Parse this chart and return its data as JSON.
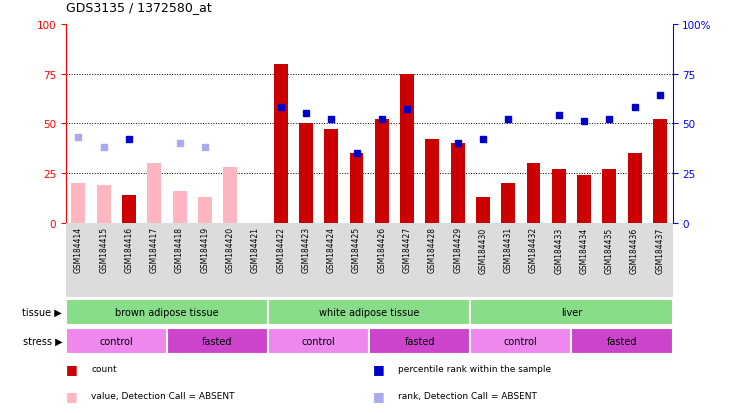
{
  "title": "GDS3135 / 1372580_at",
  "samples": [
    "GSM184414",
    "GSM184415",
    "GSM184416",
    "GSM184417",
    "GSM184418",
    "GSM184419",
    "GSM184420",
    "GSM184421",
    "GSM184422",
    "GSM184423",
    "GSM184424",
    "GSM184425",
    "GSM184426",
    "GSM184427",
    "GSM184428",
    "GSM184429",
    "GSM184430",
    "GSM184431",
    "GSM184432",
    "GSM184433",
    "GSM184434",
    "GSM184435",
    "GSM184436",
    "GSM184437"
  ],
  "count_values": [
    20,
    19,
    14,
    30,
    16,
    13,
    28,
    null,
    80,
    50,
    47,
    35,
    52,
    75,
    42,
    40,
    13,
    20,
    30,
    27,
    24,
    27,
    35,
    52
  ],
  "rank_values": [
    43,
    38,
    42,
    null,
    40,
    38,
    null,
    null,
    58,
    55,
    52,
    35,
    52,
    57,
    null,
    40,
    42,
    52,
    null,
    54,
    51,
    52,
    58,
    64
  ],
  "absent_count": [
    true,
    true,
    false,
    true,
    true,
    true,
    true,
    true,
    false,
    false,
    false,
    false,
    false,
    false,
    false,
    false,
    false,
    false,
    false,
    false,
    false,
    false,
    false,
    false
  ],
  "absent_rank": [
    true,
    true,
    false,
    true,
    true,
    true,
    true,
    true,
    false,
    false,
    false,
    false,
    false,
    false,
    false,
    false,
    false,
    false,
    false,
    false,
    false,
    false,
    false,
    false
  ],
  "tissue_groups": [
    {
      "label": "brown adipose tissue",
      "start": 0,
      "end": 8
    },
    {
      "label": "white adipose tissue",
      "start": 8,
      "end": 16
    },
    {
      "label": "liver",
      "start": 16,
      "end": 24
    }
  ],
  "stress_groups": [
    {
      "label": "control",
      "start": 0,
      "end": 4,
      "type": "control"
    },
    {
      "label": "fasted",
      "start": 4,
      "end": 8,
      "type": "fasted"
    },
    {
      "label": "control",
      "start": 8,
      "end": 12,
      "type": "control"
    },
    {
      "label": "fasted",
      "start": 12,
      "end": 16,
      "type": "fasted"
    },
    {
      "label": "control",
      "start": 16,
      "end": 20,
      "type": "control"
    },
    {
      "label": "fasted",
      "start": 20,
      "end": 24,
      "type": "fasted"
    }
  ],
  "bar_color_present": "#CC0000",
  "bar_color_absent": "#FFB6C1",
  "rank_color_present": "#0000CC",
  "rank_color_absent": "#AAAAEE",
  "tissue_color": "#88DD88",
  "control_color": "#EE88EE",
  "fasted_color": "#CC44CC",
  "ylim": [
    0,
    100
  ],
  "yticks": [
    0,
    25,
    50,
    75,
    100
  ],
  "legend_items": [
    {
      "color": "#CC0000",
      "label": "count"
    },
    {
      "color": "#0000CC",
      "label": "percentile rank within the sample"
    },
    {
      "color": "#FFB6C1",
      "label": "value, Detection Call = ABSENT"
    },
    {
      "color": "#AAAAEE",
      "label": "rank, Detection Call = ABSENT"
    }
  ]
}
